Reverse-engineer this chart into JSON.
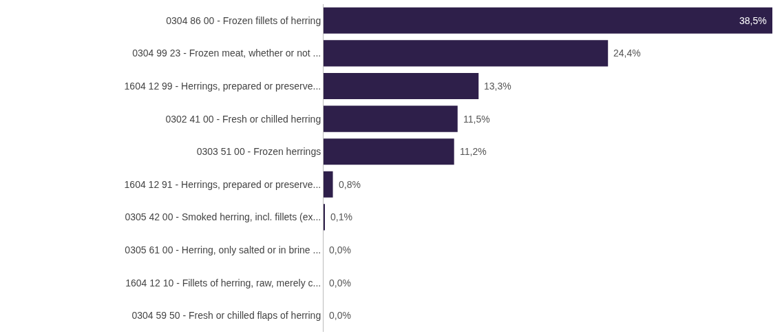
{
  "chart_data": {
    "type": "bar",
    "orientation": "horizontal",
    "categories": [
      "0304 86 00 - Frozen fillets of herring",
      "0304 99 23 - Frozen meat, whether or not ...",
      "1604 12 99 - Herrings, prepared or preserve...",
      "0302 41 00 - Fresh or chilled herring",
      "0303 51 00 - Frozen herrings",
      "1604 12 91 - Herrings, prepared or preserve...",
      "0305 42 00 - Smoked herring, incl. fillets (ex...",
      "0305 61 00 - Herring, only salted or in brine ...",
      "1604 12 10 - Fillets of herring, raw, merely c...",
      "0304 59 50 - Fresh or chilled flaps of herring"
    ],
    "values": [
      38.5,
      24.4,
      13.3,
      11.5,
      11.2,
      0.8,
      0.1,
      0.0,
      0.0,
      0.0
    ],
    "value_labels": [
      "38,5%",
      "24,4%",
      "13,3%",
      "11,5%",
      "11,2%",
      "0,8%",
      "0,1%",
      "0,0%",
      "0,0%",
      "0,0%"
    ],
    "color": "#2e1f4a",
    "grid": false
  }
}
